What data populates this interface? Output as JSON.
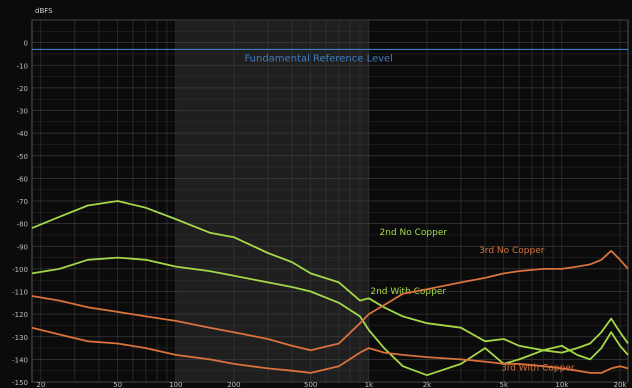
{
  "chart_data": {
    "type": "line",
    "title": "",
    "ylabel": "dBFS",
    "xlabel": "",
    "xscale": "log",
    "xlim": [
      18,
      22000
    ],
    "ylim": [
      -150,
      10
    ],
    "grid": true,
    "x_ticks": [
      "20",
      "50",
      "100",
      "200",
      "500",
      "1k",
      "2k",
      "5k",
      "10k",
      "20k"
    ],
    "y_ticks": [
      "0",
      "-10",
      "-20",
      "-30",
      "-40",
      "-50",
      "-60",
      "-70",
      "-80",
      "-90",
      "-100",
      "-110",
      "-120",
      "-130",
      "-140",
      "-150"
    ],
    "colors": {
      "background": "#0b0b0b",
      "grid": "#3a3a3a",
      "band": "#1f1f1f",
      "reference": "#3f7fc0",
      "green": "#a5d848",
      "orange": "#d9723c"
    },
    "annotations": [
      {
        "id": "ref",
        "text": "Fundamental Reference Level",
        "x": 550,
        "y": -3
      }
    ],
    "reference_level": -3,
    "series": [
      {
        "name": "2nd No Copper",
        "color": "#a5d848",
        "label_at": [
          1700,
          -85
        ],
        "points": [
          [
            18,
            -82
          ],
          [
            25,
            -77
          ],
          [
            35,
            -72
          ],
          [
            50,
            -70
          ],
          [
            70,
            -73
          ],
          [
            100,
            -78
          ],
          [
            150,
            -84
          ],
          [
            200,
            -86
          ],
          [
            300,
            -93
          ],
          [
            400,
            -97
          ],
          [
            500,
            -102
          ],
          [
            700,
            -106
          ],
          [
            900,
            -114
          ],
          [
            1000,
            -113
          ],
          [
            1200,
            -117
          ],
          [
            1500,
            -121
          ],
          [
            2000,
            -124
          ],
          [
            3000,
            -126
          ],
          [
            4000,
            -132
          ],
          [
            5000,
            -131
          ],
          [
            6000,
            -134
          ],
          [
            8000,
            -136
          ],
          [
            10000,
            -137
          ],
          [
            12000,
            -135
          ],
          [
            14000,
            -133
          ],
          [
            16000,
            -128
          ],
          [
            18000,
            -122
          ],
          [
            20000,
            -128
          ],
          [
            22000,
            -133
          ]
        ]
      },
      {
        "name": "2nd With Copper",
        "color": "#a5d848",
        "label_at": [
          1600,
          -111
        ],
        "points": [
          [
            18,
            -102
          ],
          [
            25,
            -100
          ],
          [
            35,
            -96
          ],
          [
            50,
            -95
          ],
          [
            70,
            -96
          ],
          [
            100,
            -99
          ],
          [
            150,
            -101
          ],
          [
            200,
            -103
          ],
          [
            300,
            -106
          ],
          [
            400,
            -108
          ],
          [
            500,
            -110
          ],
          [
            700,
            -115
          ],
          [
            900,
            -121
          ],
          [
            1000,
            -127
          ],
          [
            1200,
            -135
          ],
          [
            1500,
            -143
          ],
          [
            2000,
            -147
          ],
          [
            3000,
            -142
          ],
          [
            4000,
            -135
          ],
          [
            5000,
            -142
          ],
          [
            6000,
            -140
          ],
          [
            8000,
            -136
          ],
          [
            10000,
            -134
          ],
          [
            12000,
            -138
          ],
          [
            14000,
            -140
          ],
          [
            16000,
            -135
          ],
          [
            18000,
            -128
          ],
          [
            20000,
            -134
          ],
          [
            22000,
            -138
          ]
        ]
      },
      {
        "name": "3rd No Copper",
        "color": "#d9723c",
        "label_at": [
          5500,
          -93
        ],
        "points": [
          [
            18,
            -112
          ],
          [
            25,
            -114
          ],
          [
            35,
            -117
          ],
          [
            50,
            -119
          ],
          [
            70,
            -121
          ],
          [
            100,
            -123
          ],
          [
            150,
            -126
          ],
          [
            200,
            -128
          ],
          [
            300,
            -131
          ],
          [
            400,
            -134
          ],
          [
            500,
            -136
          ],
          [
            700,
            -133
          ],
          [
            900,
            -124
          ],
          [
            1000,
            -120
          ],
          [
            1200,
            -116
          ],
          [
            1500,
            -111
          ],
          [
            2000,
            -109
          ],
          [
            3000,
            -106
          ],
          [
            4000,
            -104
          ],
          [
            5000,
            -102
          ],
          [
            6000,
            -101
          ],
          [
            8000,
            -100
          ],
          [
            10000,
            -100
          ],
          [
            12000,
            -99
          ],
          [
            14000,
            -98
          ],
          [
            16000,
            -96
          ],
          [
            18000,
            -92
          ],
          [
            20000,
            -96
          ],
          [
            22000,
            -100
          ]
        ]
      },
      {
        "name": "3rd With Copper",
        "color": "#d9723c",
        "label_at": [
          7500,
          -145
        ],
        "points": [
          [
            18,
            -126
          ],
          [
            25,
            -129
          ],
          [
            35,
            -132
          ],
          [
            50,
            -133
          ],
          [
            70,
            -135
          ],
          [
            100,
            -138
          ],
          [
            150,
            -140
          ],
          [
            200,
            -142
          ],
          [
            300,
            -144
          ],
          [
            400,
            -145
          ],
          [
            500,
            -146
          ],
          [
            700,
            -143
          ],
          [
            900,
            -137
          ],
          [
            1000,
            -135
          ],
          [
            1200,
            -137
          ],
          [
            1500,
            -138
          ],
          [
            2000,
            -139
          ],
          [
            3000,
            -140
          ],
          [
            4000,
            -141
          ],
          [
            5000,
            -142
          ],
          [
            6000,
            -142
          ],
          [
            8000,
            -143
          ],
          [
            10000,
            -144
          ],
          [
            12000,
            -145
          ],
          [
            14000,
            -146
          ],
          [
            16000,
            -146
          ],
          [
            18000,
            -144
          ],
          [
            20000,
            -143
          ],
          [
            22000,
            -144
          ]
        ]
      }
    ]
  }
}
